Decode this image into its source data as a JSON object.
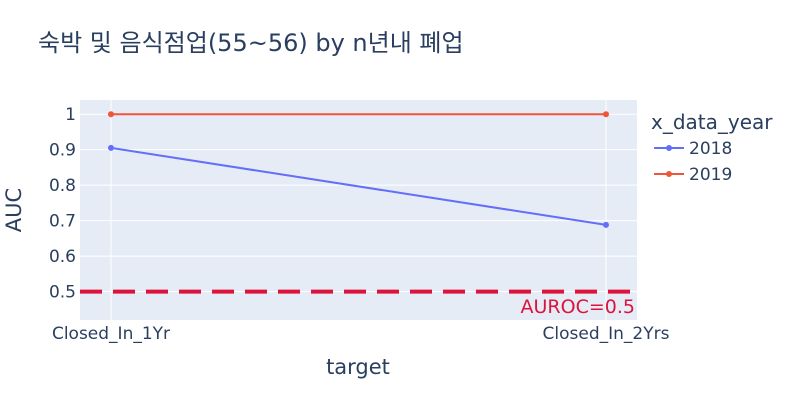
{
  "chart_data": {
    "type": "line",
    "title": "숙박 및 음식점업(55~56) by n년내 폐업",
    "xlabel": "target",
    "ylabel": "AUC",
    "categories": [
      "Closed_In_1Yr",
      "Closed_In_2Yrs"
    ],
    "yticks": [
      "0.5",
      "0.6",
      "0.7",
      "0.8",
      "0.9",
      "1"
    ],
    "ylim": [
      0.42,
      1.04
    ],
    "grid": true,
    "legend": {
      "title": "x_data_year",
      "placement": "right"
    },
    "series": [
      {
        "name": "2018",
        "values": [
          0.905,
          0.688
        ],
        "color": "#636efa"
      },
      {
        "name": "2019",
        "values": [
          1.0,
          1.0
        ],
        "color": "#ef553b"
      }
    ],
    "reference_line": {
      "y": 0.5,
      "label": "AUROC=0.5",
      "color": "#dc143c",
      "style": "dashed"
    }
  },
  "colors": {
    "plot_bg": "#e5ecf6",
    "grid": "#ffffff",
    "text": "#2a3f5f"
  }
}
